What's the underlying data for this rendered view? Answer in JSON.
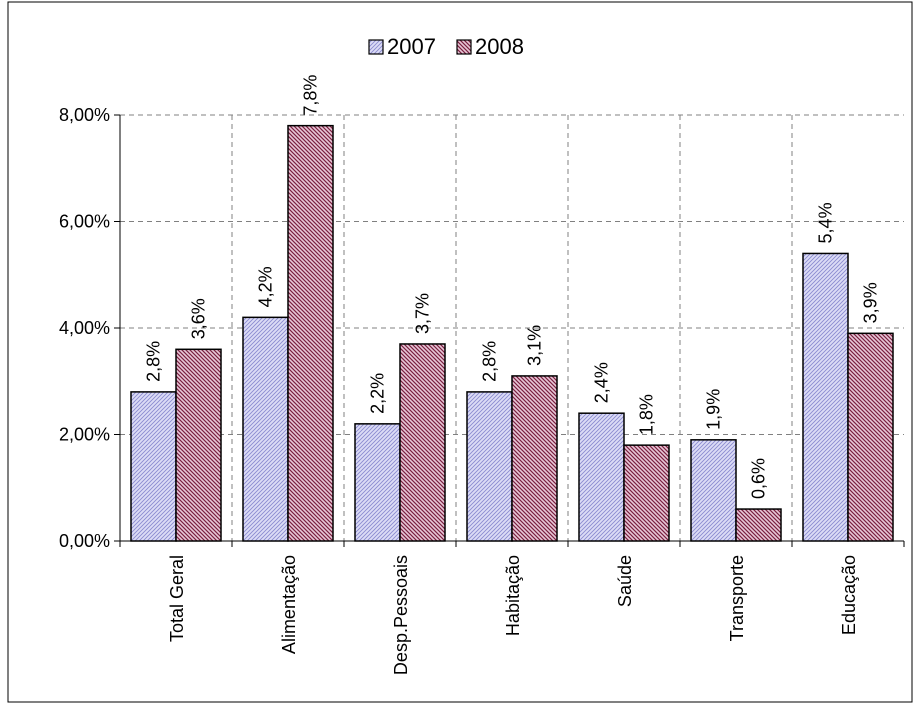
{
  "chart_data": {
    "type": "bar",
    "categories": [
      "Total Geral",
      "Alimentação",
      "Desp.Pessoais",
      "Habitação",
      "Saúde",
      "Transporte",
      "Educação"
    ],
    "series": [
      {
        "name": "2007",
        "values": [
          2.8,
          4.2,
          2.2,
          2.8,
          2.4,
          1.9,
          5.4
        ],
        "labels": [
          "2,8%",
          "4,2%",
          "2,2%",
          "2,8%",
          "2,4%",
          "1,9%",
          "5,4%"
        ],
        "color": "#c8c8f0"
      },
      {
        "name": "2008",
        "values": [
          3.6,
          7.8,
          3.7,
          3.1,
          1.8,
          0.6,
          3.9
        ],
        "labels": [
          "3,6%",
          "7,8%",
          "3,7%",
          "3,1%",
          "1,8%",
          "0,6%",
          "3,9%"
        ],
        "color": "#a0506e"
      }
    ],
    "ylim": [
      0,
      8
    ],
    "yticks": [
      {
        "value": 0,
        "label": "0,00%"
      },
      {
        "value": 2,
        "label": "2,00%"
      },
      {
        "value": 4,
        "label": "4,00%"
      },
      {
        "value": 6,
        "label": "6,00%"
      },
      {
        "value": 8,
        "label": "8,00%"
      }
    ],
    "grid": true,
    "legend_position": "top-center"
  }
}
